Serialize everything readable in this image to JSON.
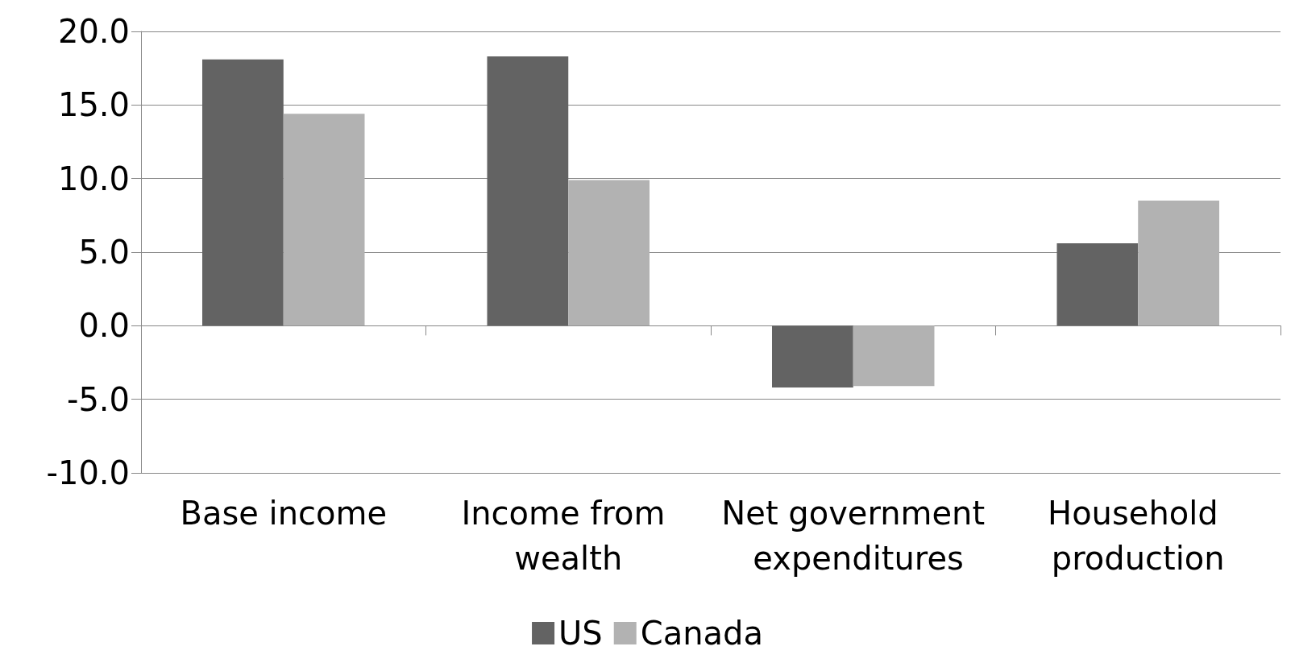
{
  "chart_data": {
    "type": "bar",
    "categories": [
      "Base income",
      "Income from wealth",
      "Net government expenditures",
      "Household production"
    ],
    "series": [
      {
        "name": "US",
        "color": "#636363",
        "values": [
          18.1,
          18.3,
          -4.2,
          5.6
        ]
      },
      {
        "name": "Canada",
        "color": "#b2b2b2",
        "values": [
          14.4,
          9.9,
          -4.1,
          8.5
        ]
      }
    ],
    "ylim": [
      -10,
      20
    ],
    "yticks": [
      {
        "value": -10,
        "label": "-10.0"
      },
      {
        "value": -5,
        "label": "-5.0"
      },
      {
        "value": 0,
        "label": "0.0"
      },
      {
        "value": 5,
        "label": "5.0"
      },
      {
        "value": 10,
        "label": "10.0"
      },
      {
        "value": 15,
        "label": "15.0"
      },
      {
        "value": 20,
        "label": "20.0"
      }
    ],
    "grid": "y",
    "legend": "bottom"
  }
}
